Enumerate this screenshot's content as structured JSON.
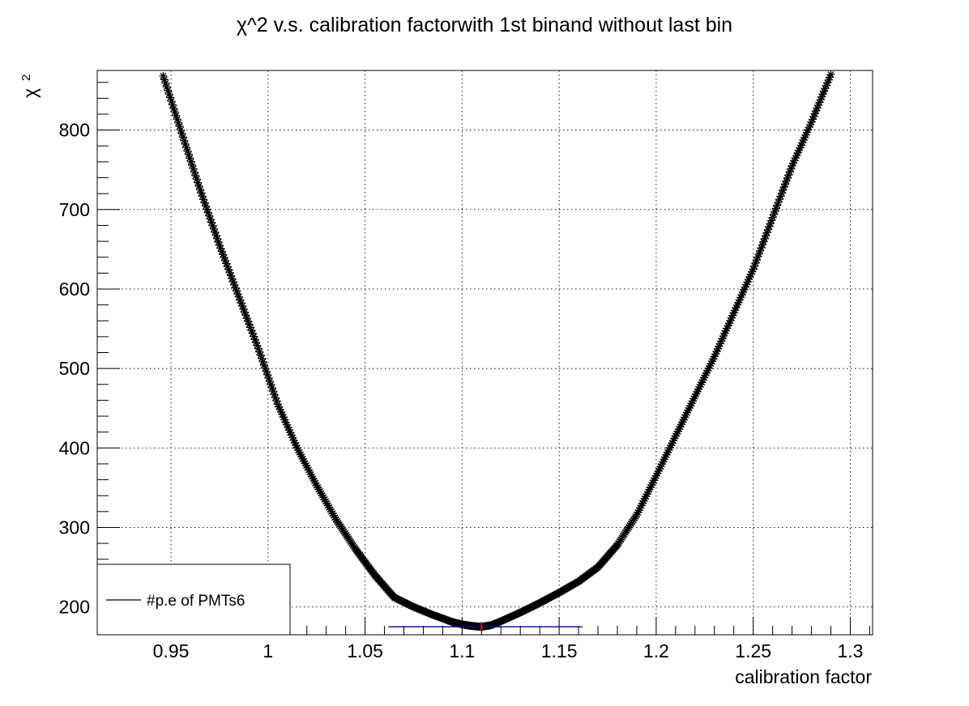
{
  "chart_data": {
    "type": "scatter",
    "title": "χ^2 v.s. calibration factorwith 1st binand without last bin",
    "xlabel": "calibration factor",
    "ylabel": "χ",
    "ylabel_superscript": "2",
    "xlim": [
      0.912,
      1.3115
    ],
    "ylim": [
      165,
      875
    ],
    "x_ticks": [
      0.95,
      1,
      1.05,
      1.1,
      1.15,
      1.2,
      1.25,
      1.3
    ],
    "x_tick_labels": [
      "0.95",
      "1",
      "1.05",
      "1.1",
      "1.15",
      "1.2",
      "1.25",
      "1.3"
    ],
    "y_ticks": [
      200,
      300,
      400,
      500,
      600,
      700,
      800
    ],
    "y_tick_labels": [
      "200",
      "300",
      "400",
      "500",
      "600",
      "700",
      "800"
    ],
    "grid": true,
    "marker": "star",
    "marker_color": "#000000",
    "series": [
      {
        "name": "#p.e of PMTs6",
        "x": [
          0.946,
          0.955,
          0.965,
          0.975,
          0.985,
          0.995,
          1.005,
          1.015,
          1.025,
          1.035,
          1.045,
          1.055,
          1.065,
          1.075,
          1.085,
          1.095,
          1.1,
          1.105,
          1.11,
          1.115,
          1.12,
          1.13,
          1.14,
          1.15,
          1.16,
          1.17,
          1.18,
          1.19,
          1.2,
          1.21,
          1.22,
          1.23,
          1.24,
          1.25,
          1.26,
          1.27,
          1.28,
          1.29
        ],
        "y": [
          868,
          800,
          725,
          655,
          590,
          525,
          455,
          400,
          353,
          310,
          273,
          240,
          212,
          200,
          190,
          181,
          178,
          176,
          175,
          177,
          182,
          193,
          205,
          218,
          232,
          250,
          278,
          316,
          365,
          415,
          465,
          515,
          570,
          625,
          690,
          755,
          810,
          870
        ]
      }
    ],
    "fit": {
      "minimum_x": 1.11,
      "minimum_y": 175,
      "error_bar_x": [
        1.062,
        1.162
      ],
      "bar_color": "#0000aa",
      "marker_color": "#ff0000"
    },
    "legend": {
      "position": "bottom-left",
      "entries": [
        "#p.e of PMTs6"
      ]
    }
  }
}
